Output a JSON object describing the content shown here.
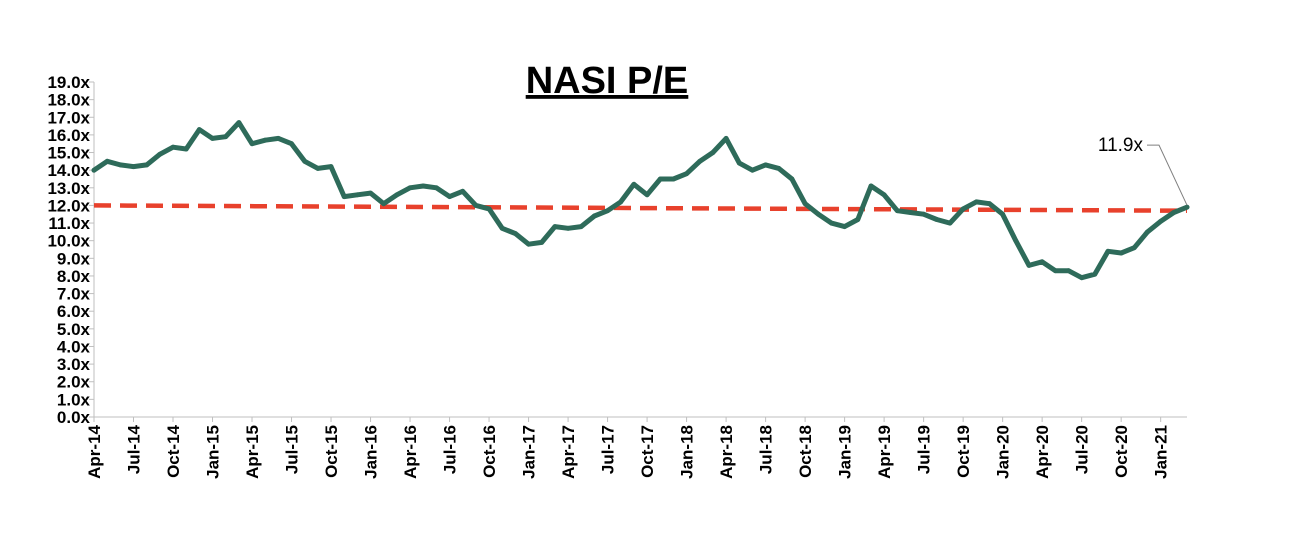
{
  "chart_data": {
    "type": "line",
    "title": "NASI P/E",
    "xlabel": "",
    "ylabel": "",
    "ylim": [
      0,
      19
    ],
    "y_ticks": [
      "0.0x",
      "1.0x",
      "2.0x",
      "3.0x",
      "4.0x",
      "5.0x",
      "6.0x",
      "7.0x",
      "8.0x",
      "9.0x",
      "10.0x",
      "11.0x",
      "12.0x",
      "13.0x",
      "14.0x",
      "15.0x",
      "16.0x",
      "17.0x",
      "18.0x",
      "19.0x"
    ],
    "x_ticks": [
      "Apr-14",
      "Jul-14",
      "Oct-14",
      "Jan-15",
      "Apr-15",
      "Jul-15",
      "Oct-15",
      "Jan-16",
      "Apr-16",
      "Jul-16",
      "Oct-16",
      "Jan-17",
      "Apr-17",
      "Jul-17",
      "Oct-17",
      "Jan-18",
      "Apr-18",
      "Jul-18",
      "Oct-18",
      "Jan-19",
      "Apr-19",
      "Jul-19",
      "Oct-19",
      "Jan-20",
      "Apr-20",
      "Jul-20",
      "Oct-20",
      "Jan-21"
    ],
    "grid": false,
    "legend": "none",
    "line_color": "#2E6B5A",
    "avg_color": "#E8412C",
    "series": [
      {
        "x": [
          "Apr-14",
          "May-14",
          "Jun-14",
          "Jul-14",
          "Aug-14",
          "Sep-14",
          "Oct-14",
          "Nov-14",
          "Dec-14",
          "Jan-15",
          "Feb-15",
          "Mar-15",
          "Apr-15",
          "May-15",
          "Jun-15",
          "Jul-15",
          "Aug-15",
          "Sep-15",
          "Oct-15",
          "Nov-15",
          "Dec-15",
          "Jan-16",
          "Feb-16",
          "Mar-16",
          "Apr-16",
          "May-16",
          "Jun-16",
          "Jul-16",
          "Aug-16",
          "Sep-16",
          "Oct-16",
          "Nov-16",
          "Dec-16",
          "Jan-17",
          "Feb-17",
          "Mar-17",
          "Apr-17",
          "May-17",
          "Jun-17",
          "Jul-17",
          "Aug-17",
          "Sep-17",
          "Oct-17",
          "Nov-17",
          "Dec-17",
          "Jan-18",
          "Feb-18",
          "Mar-18",
          "Apr-18",
          "May-18",
          "Jun-18",
          "Jul-18",
          "Aug-18",
          "Sep-18",
          "Oct-18",
          "Nov-18",
          "Dec-18",
          "Jan-19",
          "Feb-19",
          "Mar-19",
          "Apr-19",
          "May-19",
          "Jun-19",
          "Jul-19",
          "Aug-19",
          "Sep-19",
          "Oct-19",
          "Nov-19",
          "Dec-19",
          "Jan-20",
          "Feb-20",
          "Mar-20",
          "Apr-20",
          "May-20",
          "Jun-20",
          "Jul-20",
          "Aug-20",
          "Sep-20",
          "Oct-20",
          "Nov-20",
          "Dec-20",
          "Jan-21",
          "Feb-21",
          "Mar-21"
        ],
        "values": [
          14.0,
          14.5,
          14.3,
          14.2,
          14.3,
          14.9,
          15.3,
          15.2,
          16.3,
          15.8,
          15.9,
          16.7,
          15.5,
          15.7,
          15.8,
          15.5,
          14.5,
          14.1,
          14.2,
          12.5,
          12.6,
          12.7,
          12.1,
          12.6,
          13.0,
          13.1,
          13.0,
          12.5,
          12.8,
          12.0,
          11.8,
          10.7,
          10.4,
          9.8,
          9.9,
          10.8,
          10.7,
          10.8,
          11.4,
          11.7,
          12.2,
          13.2,
          12.6,
          13.5,
          13.5,
          13.8,
          14.5,
          15.0,
          15.8,
          14.4,
          14.0,
          14.3,
          14.1,
          13.5,
          12.1,
          11.5,
          11.0,
          10.8,
          11.2,
          13.1,
          12.6,
          11.7,
          11.6,
          11.5,
          11.2,
          11.0,
          11.8,
          12.2,
          12.1,
          11.5,
          10.0,
          8.6,
          8.8,
          8.3,
          8.3,
          7.9,
          8.1,
          9.4,
          9.3,
          9.6,
          10.5,
          11.1,
          11.6,
          11.9
        ]
      }
    ],
    "average": {
      "start": 12.0,
      "end": 11.7
    },
    "annotation": {
      "text": "11.9x",
      "value": 11.9
    }
  }
}
